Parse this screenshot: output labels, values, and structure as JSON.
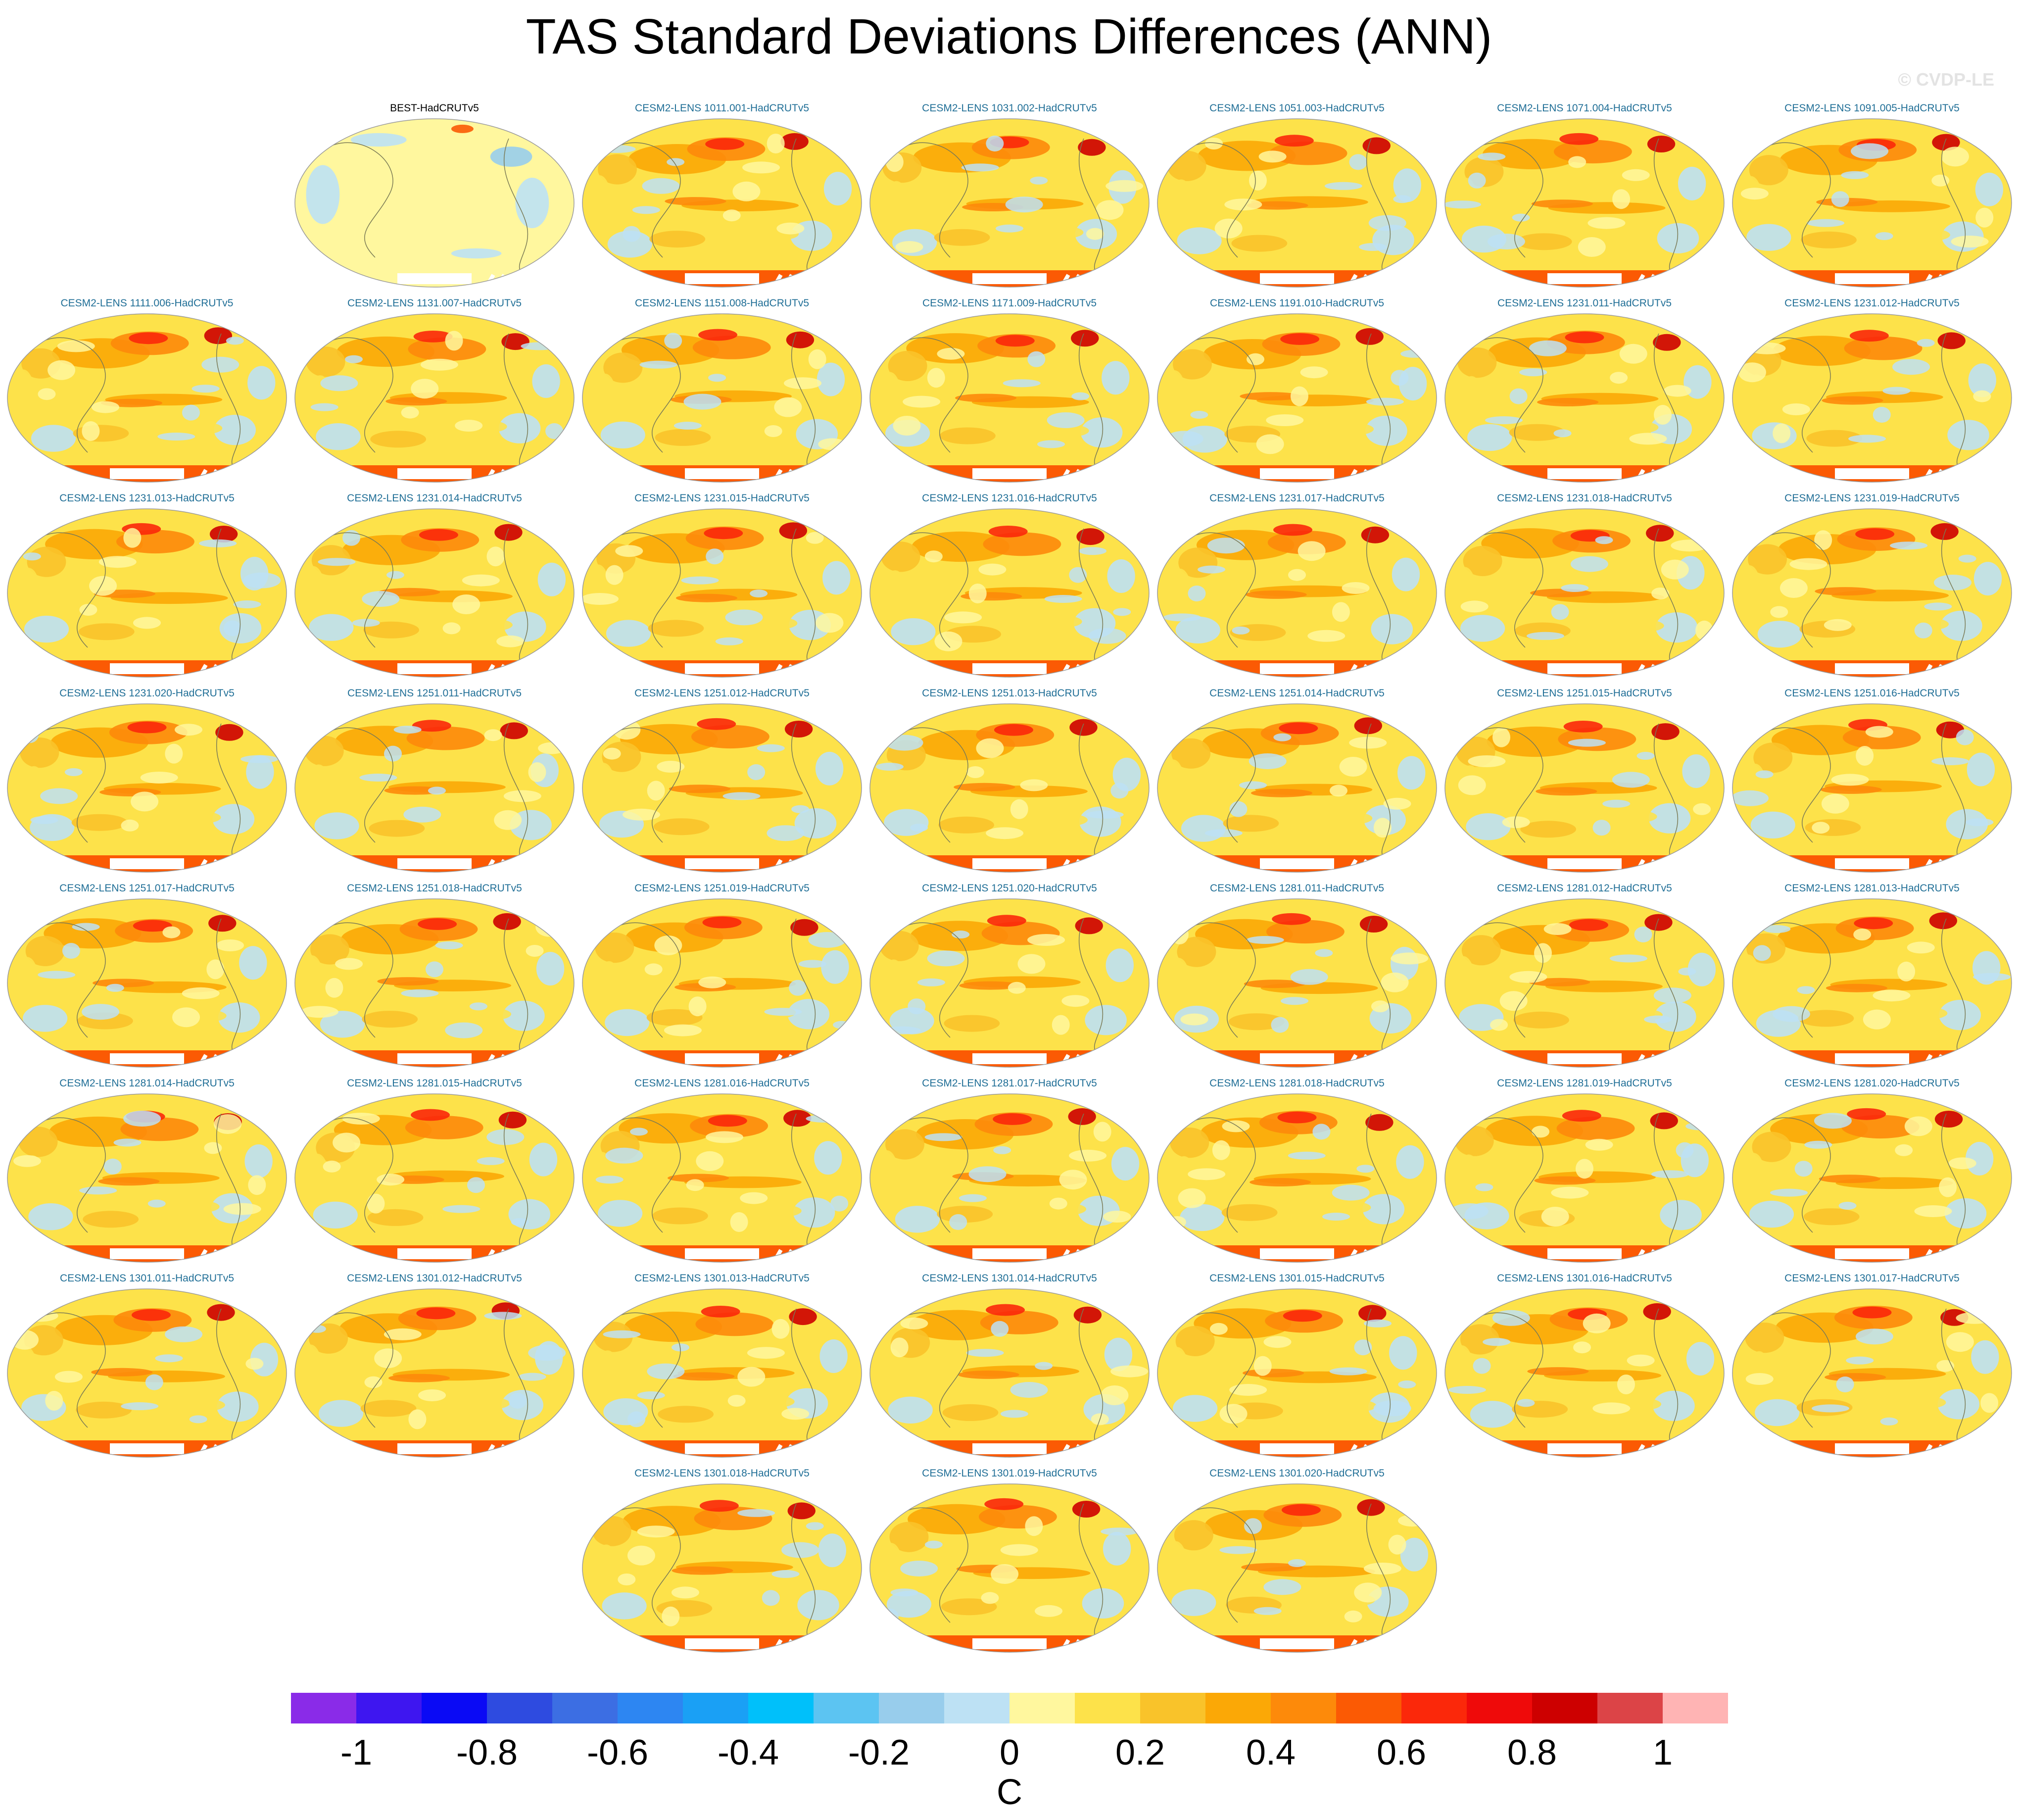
{
  "title": "TAS Standard Deviations Differences (ANN)",
  "watermark": "© CVDP-LE",
  "panels": [
    {
      "label": "BEST-HadCRUTv5",
      "kind": "observation"
    },
    {
      "label": "CESM2-LENS 1011.001-HadCRUTv5",
      "kind": "model"
    },
    {
      "label": "CESM2-LENS 1031.002-HadCRUTv5",
      "kind": "model"
    },
    {
      "label": "CESM2-LENS 1051.003-HadCRUTv5",
      "kind": "model"
    },
    {
      "label": "CESM2-LENS 1071.004-HadCRUTv5",
      "kind": "model"
    },
    {
      "label": "CESM2-LENS 1091.005-HadCRUTv5",
      "kind": "model"
    },
    {
      "label": "CESM2-LENS 1111.006-HadCRUTv5",
      "kind": "model"
    },
    {
      "label": "CESM2-LENS 1131.007-HadCRUTv5",
      "kind": "model"
    },
    {
      "label": "CESM2-LENS 1151.008-HadCRUTv5",
      "kind": "model"
    },
    {
      "label": "CESM2-LENS 1171.009-HadCRUTv5",
      "kind": "model"
    },
    {
      "label": "CESM2-LENS 1191.010-HadCRUTv5",
      "kind": "model"
    },
    {
      "label": "CESM2-LENS 1231.011-HadCRUTv5",
      "kind": "model"
    },
    {
      "label": "CESM2-LENS 1231.012-HadCRUTv5",
      "kind": "model"
    },
    {
      "label": "CESM2-LENS 1231.013-HadCRUTv5",
      "kind": "model"
    },
    {
      "label": "CESM2-LENS 1231.014-HadCRUTv5",
      "kind": "model"
    },
    {
      "label": "CESM2-LENS 1231.015-HadCRUTv5",
      "kind": "model"
    },
    {
      "label": "CESM2-LENS 1231.016-HadCRUTv5",
      "kind": "model"
    },
    {
      "label": "CESM2-LENS 1231.017-HadCRUTv5",
      "kind": "model"
    },
    {
      "label": "CESM2-LENS 1231.018-HadCRUTv5",
      "kind": "model"
    },
    {
      "label": "CESM2-LENS 1231.019-HadCRUTv5",
      "kind": "model"
    },
    {
      "label": "CESM2-LENS 1231.020-HadCRUTv5",
      "kind": "model"
    },
    {
      "label": "CESM2-LENS 1251.011-HadCRUTv5",
      "kind": "model"
    },
    {
      "label": "CESM2-LENS 1251.012-HadCRUTv5",
      "kind": "model"
    },
    {
      "label": "CESM2-LENS 1251.013-HadCRUTv5",
      "kind": "model"
    },
    {
      "label": "CESM2-LENS 1251.014-HadCRUTv5",
      "kind": "model"
    },
    {
      "label": "CESM2-LENS 1251.015-HadCRUTv5",
      "kind": "model"
    },
    {
      "label": "CESM2-LENS 1251.016-HadCRUTv5",
      "kind": "model"
    },
    {
      "label": "CESM2-LENS 1251.017-HadCRUTv5",
      "kind": "model"
    },
    {
      "label": "CESM2-LENS 1251.018-HadCRUTv5",
      "kind": "model"
    },
    {
      "label": "CESM2-LENS 1251.019-HadCRUTv5",
      "kind": "model"
    },
    {
      "label": "CESM2-LENS 1251.020-HadCRUTv5",
      "kind": "model"
    },
    {
      "label": "CESM2-LENS 1281.011-HadCRUTv5",
      "kind": "model"
    },
    {
      "label": "CESM2-LENS 1281.012-HadCRUTv5",
      "kind": "model"
    },
    {
      "label": "CESM2-LENS 1281.013-HadCRUTv5",
      "kind": "model"
    },
    {
      "label": "CESM2-LENS 1281.014-HadCRUTv5",
      "kind": "model"
    },
    {
      "label": "CESM2-LENS 1281.015-HadCRUTv5",
      "kind": "model"
    },
    {
      "label": "CESM2-LENS 1281.016-HadCRUTv5",
      "kind": "model"
    },
    {
      "label": "CESM2-LENS 1281.017-HadCRUTv5",
      "kind": "model"
    },
    {
      "label": "CESM2-LENS 1281.018-HadCRUTv5",
      "kind": "model"
    },
    {
      "label": "CESM2-LENS 1281.019-HadCRUTv5",
      "kind": "model"
    },
    {
      "label": "CESM2-LENS 1281.020-HadCRUTv5",
      "kind": "model"
    },
    {
      "label": "CESM2-LENS 1301.011-HadCRUTv5",
      "kind": "model"
    },
    {
      "label": "CESM2-LENS 1301.012-HadCRUTv5",
      "kind": "model"
    },
    {
      "label": "CESM2-LENS 1301.013-HadCRUTv5",
      "kind": "model"
    },
    {
      "label": "CESM2-LENS 1301.014-HadCRUTv5",
      "kind": "model"
    },
    {
      "label": "CESM2-LENS 1301.015-HadCRUTv5",
      "kind": "model"
    },
    {
      "label": "CESM2-LENS 1301.016-HadCRUTv5",
      "kind": "model"
    },
    {
      "label": "CESM2-LENS 1301.017-HadCRUTv5",
      "kind": "model"
    },
    {
      "label": "CESM2-LENS 1301.018-HadCRUTv5",
      "kind": "model"
    },
    {
      "label": "CESM2-LENS 1301.019-HadCRUTv5",
      "kind": "model"
    },
    {
      "label": "CESM2-LENS 1301.020-HadCRUTv5",
      "kind": "model"
    }
  ],
  "colorbar": {
    "unit": "C",
    "colors": [
      "#8a2be8",
      "#3e16f0",
      "#0a0af5",
      "#2e4be0",
      "#3c6ee3",
      "#2d86f2",
      "#1aa0f5",
      "#00c0fa",
      "#5cc4f2",
      "#98cdec",
      "#bde1f4",
      "#fff79e",
      "#fde24a",
      "#f9c32a",
      "#fba806",
      "#fd8a0a",
      "#fb5a04",
      "#fb280a",
      "#ef0a0a",
      "#cd0000",
      "#dc4447",
      "#ffb4b4"
    ],
    "tick_labels": [
      "-1",
      "-0.8",
      "-0.6",
      "-0.4",
      "-0.2",
      "0",
      "0.2",
      "0.4",
      "0.6",
      "0.8",
      "1"
    ],
    "tick_values": [
      -1,
      -0.8,
      -0.6,
      -0.4,
      -0.2,
      0,
      0.2,
      0.4,
      0.6,
      0.8,
      1
    ]
  }
}
